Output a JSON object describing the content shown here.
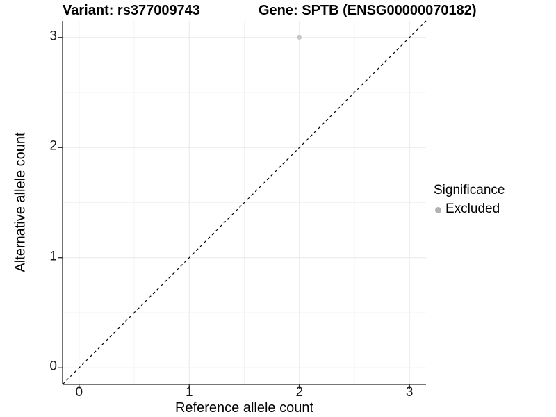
{
  "chart_data": {
    "type": "scatter",
    "title_left": "Variant: rs377009743",
    "title_right": "Gene: SPTB (ENSG00000070182)",
    "xlabel": "Reference allele count",
    "ylabel": "Alternative allele count",
    "xlim": [
      -0.15,
      3.15
    ],
    "ylim": [
      -0.15,
      3.15
    ],
    "x_major_ticks": [
      0,
      1,
      2,
      3
    ],
    "y_major_ticks": [
      0,
      1,
      2,
      3
    ],
    "x_minor_ticks": [
      0.5,
      1.5,
      2.5
    ],
    "y_minor_ticks": [
      0.5,
      1.5,
      2.5
    ],
    "grid": true,
    "series": [
      {
        "name": "Excluded",
        "color": "#c6c6c6",
        "points": [
          {
            "x": 2,
            "y": 3
          }
        ]
      }
    ],
    "reference_line": {
      "type": "identity",
      "slope": 1,
      "intercept": 0,
      "style": "dashed",
      "color": "#000000"
    },
    "legend": {
      "title": "Significance",
      "position": "right",
      "items": [
        {
          "label": "Excluded",
          "color": "#b2b2b2",
          "marker": "circle"
        }
      ]
    }
  },
  "colors": {
    "background": "#ffffff",
    "grid_major": "#e8e8e8",
    "grid_minor": "#f3f3f3",
    "axis_line": "#262626",
    "tick_mark": "#262626",
    "tick_text": "#1a1a1a",
    "point": "#c6c6c6",
    "legend_dot": "#b2b2b2",
    "reference_line": "#000000"
  }
}
